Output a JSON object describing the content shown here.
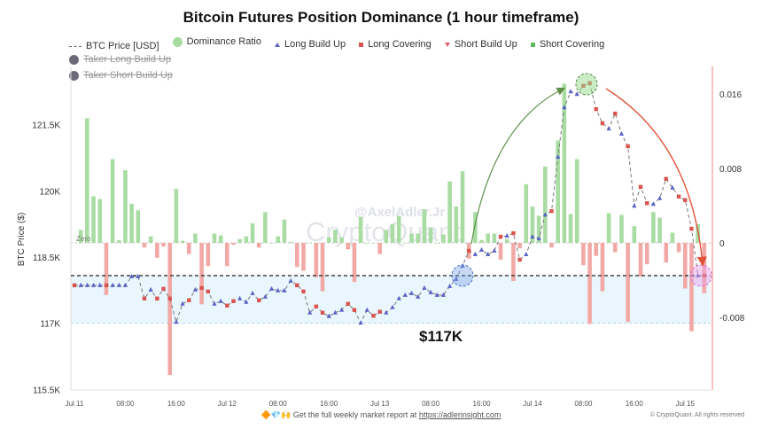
{
  "chart_data": {
    "type": "bar+line",
    "title": "Bitcoin Futures Position Dominance (1 hour timeframe)",
    "ylabel": "BTC Price ($)",
    "ylabel_right": "",
    "left_ticks": [
      "121.5K",
      "120K",
      "118.5K",
      "117K",
      "115.5K"
    ],
    "left_tick_values": [
      121.5,
      120,
      118.5,
      117,
      115.5
    ],
    "right_ticks": [
      "0.016",
      "0.008",
      "0",
      "-0.008"
    ],
    "right_tick_values": [
      0.016,
      0.008,
      0,
      -0.008
    ],
    "x_ticks": [
      "Jul 11",
      "08:00",
      "16:00",
      "Jul 12",
      "08:00",
      "16:00",
      "Jul 13",
      "08:00",
      "16:00",
      "Jul 14",
      "08:00",
      "16:00",
      "Jul 15"
    ],
    "x_tick_hours": [
      0,
      8,
      16,
      24,
      32,
      40,
      48,
      56,
      64,
      72,
      80,
      88,
      96
    ],
    "ylim_left": [
      115.5,
      123.0
    ],
    "ylim_right": [
      -0.014,
      0.018
    ],
    "zero_label": "Zero",
    "legend": [
      {
        "label": "BTC Price [USD]",
        "color": "#666666",
        "style": "dashed"
      },
      {
        "label": "Dominance Ratio",
        "color": "#a6dca0",
        "style": "circle"
      },
      {
        "label": "Long Build Up",
        "color": "#5a63c8",
        "style": "triangle"
      },
      {
        "label": "Long Covering",
        "color": "#d9534f",
        "style": "square"
      },
      {
        "label": "Short Build Up",
        "color": "#e06070",
        "style": "down-triangle"
      },
      {
        "label": "Short Covering",
        "color": "#5cb85c",
        "style": "square"
      },
      {
        "label": "Taker Long Build Up",
        "color": "#6b6b78",
        "style": "circle",
        "hidden": true
      },
      {
        "label": "Taker Short Build Up",
        "color": "#6b6b78",
        "style": "circle",
        "hidden": true
      }
    ],
    "price_series": {
      "unit": "K USD",
      "start_hour": 0,
      "values": [
        117.86,
        117.86,
        117.86,
        117.86,
        117.86,
        117.86,
        117.86,
        117.86,
        117.86,
        118.06,
        118.06,
        117.56,
        117.76,
        117.56,
        117.78,
        117.56,
        117.03,
        117.44,
        117.52,
        117.76,
        117.8,
        117.72,
        117.44,
        117.5,
        117.4,
        117.5,
        117.56,
        117.48,
        117.68,
        117.52,
        117.6,
        117.78,
        117.74,
        117.74,
        117.96,
        117.86,
        117.72,
        117.24,
        117.38,
        117.24,
        117.16,
        117.24,
        117.3,
        117.44,
        117.3,
        117.01,
        117.3,
        117.17,
        117.26,
        117.24,
        117.36,
        117.56,
        117.64,
        117.68,
        117.6,
        117.8,
        117.7,
        117.64,
        117.64,
        117.84,
        118.0,
        118.3,
        118.64,
        118.56,
        118.66,
        118.56,
        118.64,
        118.96,
        118.98,
        119.04,
        118.44,
        118.56,
        118.96,
        118.92,
        119.46,
        119.54,
        120.77,
        121.89,
        122.25,
        122.19,
        122.38,
        122.44,
        121.85,
        121.53,
        121.41,
        121.75,
        121.29,
        121.01,
        119.66,
        120.09,
        119.72,
        119.7,
        119.83,
        120.27,
        120.07,
        119.87,
        119.79,
        119.14,
        118.08,
        118.08
      ],
      "types": [
        "LC",
        "LBU",
        "LBU",
        "LBU",
        "LBU",
        "LC",
        "LBU",
        "LBU",
        "LBU",
        "LBU",
        "LBU",
        "LC",
        "LBU",
        "LC",
        "LC",
        "LC",
        "LBU",
        "LBU",
        "LC",
        "LBU",
        "LC",
        "LC",
        "LBU",
        "LBU",
        "LC",
        "LC",
        "LBU",
        "LBU",
        "LBU",
        "LC",
        "LBU",
        "LBU",
        "LBU",
        "LBU",
        "LBU",
        "LC",
        "LC",
        "LBU",
        "LC",
        "LC",
        "LBU",
        "LBU",
        "LBU",
        "LC",
        "LC",
        "LBU",
        "LBU",
        "LC",
        "LC",
        "LBU",
        "LBU",
        "LBU",
        "LBU",
        "LBU",
        "LBU",
        "LBU",
        "LBU",
        "LBU",
        "LBU",
        "LBU",
        "LBU",
        "LBU",
        "LC",
        "LBU",
        "LBU",
        "LBU",
        "LBU",
        "LC",
        "LBU",
        "LC",
        "LC",
        "LBU",
        "LBU",
        "LBU",
        "LBU",
        "LC",
        "LBU",
        "LBU",
        "LBU",
        "LBU",
        "LC",
        "LC",
        "LC",
        "LC",
        "LBU",
        "LC",
        "LBU",
        "LC",
        "LBU",
        "LC",
        "LC",
        "LBU",
        "LBU",
        "LC",
        "LBU",
        "LC",
        "LC",
        "LC",
        "LBU",
        "LC"
      ]
    },
    "dominance_series": {
      "start_hour": 1,
      "values": [
        0.0014,
        0.0134,
        0.005,
        0.0047,
        -0.0056,
        0.009,
        0.0003,
        0.0078,
        0.0042,
        0.0035,
        -0.0005,
        0.0007,
        -0.0016,
        -0.0004,
        -0.0142,
        0.0058,
        0.0002,
        -0.0012,
        0.001,
        -0.0066,
        -0.0025,
        0.001,
        0.0008,
        -0.0025,
        -0.0002,
        0.0004,
        0.0007,
        0.0021,
        -0.0005,
        0.0033,
        0.0,
        0.0007,
        0.0025,
        0.0001,
        -0.0026,
        -0.003,
        0.0,
        -0.0037,
        -0.0052,
        0.0006,
        0.0014,
        0.0006,
        -0.0007,
        -0.0042,
        0.0028,
        0.0,
        0.0,
        -0.0012,
        0.0014,
        0.002,
        0.0029,
        0.0,
        0.001,
        0.001,
        0.0036,
        0.0016,
        0.0,
        0.0009,
        0.0066,
        0.0039,
        0.0077,
        -0.0017,
        0.0033,
        0.0003,
        0.001,
        0.001,
        -0.0018,
        0.0004,
        -0.0041,
        -0.0006,
        0.0063,
        0.0039,
        0.0029,
        0.0082,
        -0.0005,
        0.011,
        0.0171,
        0.0031,
        0.009,
        -0.0024,
        -0.0087,
        -0.0014,
        -0.0052,
        0.0032,
        -0.001,
        0.003,
        -0.0085,
        0.0018,
        -0.0036,
        -0.0023,
        0.0033,
        0.0027,
        -0.0021,
        0.0011,
        -0.001,
        -0.0049,
        -0.0095,
        0.002,
        -0.0054
      ]
    },
    "reference_line": {
      "value": 118.08
    },
    "support_band": {
      "from": 117.0,
      "to": 118.08
    },
    "annotations": {
      "price_label": "$117K",
      "watermark_handle": "@AxelAdler.Jr",
      "watermark_brand": "CryptoQuant",
      "highlight_points_hours": [
        61,
        80.5,
        98.5
      ]
    },
    "colors": {
      "bar_positive": "#a8dca2",
      "bar_negative": "#f2a9a6",
      "band": "#e9f6fd",
      "long_build_up": "#5a63c8",
      "long_covering": "#d9534f",
      "up_arrow": "#5f8f4a",
      "down_arrow": "#e0533a"
    }
  },
  "footer": {
    "icons": "🔶💎🙌",
    "text": "Get the full weekly market report at",
    "link": "https://adlerinsight.com",
    "copyright": "© CryptoQuant. All rights reserved"
  }
}
